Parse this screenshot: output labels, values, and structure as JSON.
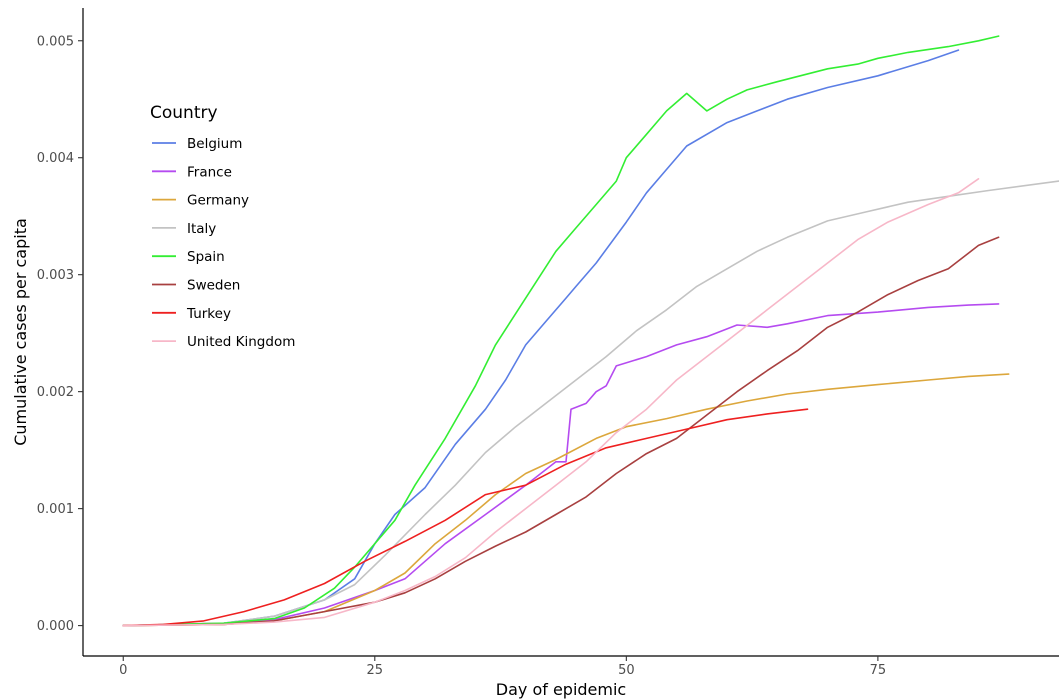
{
  "chart_data": {
    "type": "line",
    "xlabel": "Day of epidemic",
    "ylabel": "Cumulative cases per capita",
    "xlim": [
      -4,
      93
    ],
    "ylim": [
      -0.00026,
      0.00528
    ],
    "x_ticks": [
      0,
      25,
      50,
      75
    ],
    "x_tick_labels": [
      "0",
      "25",
      "50",
      "75"
    ],
    "y_ticks": [
      0,
      0.001,
      0.002,
      0.003,
      0.004,
      0.005
    ],
    "y_tick_labels": [
      "0.000",
      "0.001",
      "0.002",
      "0.003",
      "0.004",
      "0.005"
    ],
    "grid": false,
    "legend": {
      "title": "Country",
      "position": "top-left"
    },
    "series": [
      {
        "name": "Belgium",
        "color": "#5b7ee5",
        "points": [
          [
            0,
            0
          ],
          [
            10,
            2e-05
          ],
          [
            15,
            8e-05
          ],
          [
            20,
            0.00022
          ],
          [
            23,
            0.0004
          ],
          [
            25,
            0.0007
          ],
          [
            27,
            0.00095
          ],
          [
            30,
            0.00118
          ],
          [
            33,
            0.00155
          ],
          [
            36,
            0.00185
          ],
          [
            38,
            0.0021
          ],
          [
            40,
            0.0024
          ],
          [
            42,
            0.0026
          ],
          [
            44,
            0.0028
          ],
          [
            45,
            0.0029
          ],
          [
            47,
            0.0031
          ],
          [
            50,
            0.00345
          ],
          [
            52,
            0.0037
          ],
          [
            54,
            0.0039
          ],
          [
            56,
            0.0041
          ],
          [
            60,
            0.0043
          ],
          [
            63,
            0.0044
          ],
          [
            66,
            0.0045
          ],
          [
            70,
            0.0046
          ],
          [
            75,
            0.0047
          ],
          [
            80,
            0.00483
          ],
          [
            83,
            0.00492
          ]
        ]
      },
      {
        "name": "France",
        "color": "#b54bf0",
        "points": [
          [
            0,
            0
          ],
          [
            10,
            2e-05
          ],
          [
            15,
            5e-05
          ],
          [
            20,
            0.00015
          ],
          [
            25,
            0.0003
          ],
          [
            28,
            0.0004
          ],
          [
            32,
            0.0007
          ],
          [
            36,
            0.00095
          ],
          [
            40,
            0.0012
          ],
          [
            43,
            0.0014
          ],
          [
            44,
            0.0014
          ],
          [
            44.5,
            0.00185
          ],
          [
            46,
            0.0019
          ],
          [
            47,
            0.002
          ],
          [
            48,
            0.00205
          ],
          [
            49,
            0.00222
          ],
          [
            52,
            0.0023
          ],
          [
            55,
            0.0024
          ],
          [
            58,
            0.00247
          ],
          [
            61,
            0.00257
          ],
          [
            64,
            0.00255
          ],
          [
            66,
            0.00258
          ],
          [
            70,
            0.00265
          ],
          [
            75,
            0.00268
          ],
          [
            80,
            0.00272
          ],
          [
            84,
            0.00274
          ],
          [
            87,
            0.00275
          ]
        ]
      },
      {
        "name": "Germany",
        "color": "#dca73c",
        "points": [
          [
            0,
            0
          ],
          [
            10,
            1e-05
          ],
          [
            15,
            4e-05
          ],
          [
            20,
            0.00012
          ],
          [
            25,
            0.0003
          ],
          [
            28,
            0.00045
          ],
          [
            31,
            0.0007
          ],
          [
            34,
            0.0009
          ],
          [
            37,
            0.00112
          ],
          [
            40,
            0.0013
          ],
          [
            43,
            0.00142
          ],
          [
            47,
            0.0016
          ],
          [
            50,
            0.0017
          ],
          [
            54,
            0.00177
          ],
          [
            58,
            0.00185
          ],
          [
            62,
            0.00192
          ],
          [
            66,
            0.00198
          ],
          [
            70,
            0.00202
          ],
          [
            75,
            0.00206
          ],
          [
            80,
            0.0021
          ],
          [
            84,
            0.00213
          ],
          [
            88,
            0.00215
          ]
        ]
      },
      {
        "name": "Italy",
        "color": "#c3c3c3",
        "points": [
          [
            0,
            0
          ],
          [
            10,
            2e-05
          ],
          [
            15,
            8e-05
          ],
          [
            20,
            0.00022
          ],
          [
            23,
            0.00035
          ],
          [
            26,
            0.0006
          ],
          [
            30,
            0.00095
          ],
          [
            33,
            0.0012
          ],
          [
            36,
            0.00148
          ],
          [
            39,
            0.0017
          ],
          [
            42,
            0.0019
          ],
          [
            45,
            0.0021
          ],
          [
            48,
            0.0023
          ],
          [
            51,
            0.00252
          ],
          [
            54,
            0.0027
          ],
          [
            57,
            0.0029
          ],
          [
            60,
            0.00305
          ],
          [
            63,
            0.0032
          ],
          [
            66,
            0.00332
          ],
          [
            70,
            0.00346
          ],
          [
            74,
            0.00354
          ],
          [
            78,
            0.00362
          ],
          [
            82,
            0.00367
          ],
          [
            86,
            0.00372
          ],
          [
            93,
            0.0038
          ]
        ]
      },
      {
        "name": "Spain",
        "color": "#33ee33",
        "points": [
          [
            0,
            0
          ],
          [
            10,
            2e-05
          ],
          [
            15,
            6e-05
          ],
          [
            18,
            0.00015
          ],
          [
            21,
            0.00032
          ],
          [
            23,
            0.0005
          ],
          [
            25,
            0.0007
          ],
          [
            27,
            0.0009
          ],
          [
            29,
            0.0012
          ],
          [
            32,
            0.0016
          ],
          [
            35,
            0.00205
          ],
          [
            37,
            0.0024
          ],
          [
            40,
            0.0028
          ],
          [
            43,
            0.0032
          ],
          [
            45,
            0.0034
          ],
          [
            47,
            0.0036
          ],
          [
            49,
            0.0038
          ],
          [
            50,
            0.004
          ],
          [
            52,
            0.0042
          ],
          [
            54,
            0.0044
          ],
          [
            56,
            0.00455
          ],
          [
            58,
            0.0044
          ],
          [
            60,
            0.0045
          ],
          [
            62,
            0.00458
          ],
          [
            65,
            0.00465
          ],
          [
            70,
            0.00476
          ],
          [
            73,
            0.0048
          ],
          [
            75,
            0.00485
          ],
          [
            78,
            0.0049
          ],
          [
            82,
            0.00495
          ],
          [
            85,
            0.005
          ],
          [
            87,
            0.00504
          ]
        ]
      },
      {
        "name": "Sweden",
        "color": "#a84040",
        "points": [
          [
            0,
            0
          ],
          [
            10,
            1e-05
          ],
          [
            15,
            4e-05
          ],
          [
            20,
            0.00012
          ],
          [
            25,
            0.0002
          ],
          [
            28,
            0.00028
          ],
          [
            31,
            0.0004
          ],
          [
            34,
            0.00055
          ],
          [
            37,
            0.00068
          ],
          [
            40,
            0.0008
          ],
          [
            43,
            0.00095
          ],
          [
            46,
            0.0011
          ],
          [
            49,
            0.0013
          ],
          [
            52,
            0.00147
          ],
          [
            55,
            0.0016
          ],
          [
            58,
            0.0018
          ],
          [
            61,
            0.002
          ],
          [
            64,
            0.00218
          ],
          [
            67,
            0.00235
          ],
          [
            70,
            0.00255
          ],
          [
            73,
            0.00268
          ],
          [
            76,
            0.00283
          ],
          [
            79,
            0.00295
          ],
          [
            82,
            0.00305
          ],
          [
            85,
            0.00325
          ],
          [
            87,
            0.00332
          ]
        ]
      },
      {
        "name": "Turkey",
        "color": "#ee2020",
        "points": [
          [
            0,
            0
          ],
          [
            4,
            1e-05
          ],
          [
            8,
            4e-05
          ],
          [
            12,
            0.00012
          ],
          [
            16,
            0.00022
          ],
          [
            20,
            0.00036
          ],
          [
            24,
            0.00055
          ],
          [
            28,
            0.00072
          ],
          [
            32,
            0.0009
          ],
          [
            36,
            0.00112
          ],
          [
            40,
            0.0012
          ],
          [
            44,
            0.00138
          ],
          [
            48,
            0.00152
          ],
          [
            52,
            0.0016
          ],
          [
            56,
            0.00168
          ],
          [
            60,
            0.00176
          ],
          [
            64,
            0.00181
          ],
          [
            68,
            0.00185
          ]
        ]
      },
      {
        "name": "United Kingdom",
        "color": "#f7b7c8",
        "points": [
          [
            0,
            0
          ],
          [
            10,
            1e-05
          ],
          [
            15,
            3e-05
          ],
          [
            20,
            7e-05
          ],
          [
            25,
            0.0002
          ],
          [
            28,
            0.0003
          ],
          [
            31,
            0.00042
          ],
          [
            34,
            0.00058
          ],
          [
            37,
            0.0008
          ],
          [
            40,
            0.001
          ],
          [
            43,
            0.0012
          ],
          [
            46,
            0.0014
          ],
          [
            49,
            0.00165
          ],
          [
            52,
            0.00185
          ],
          [
            55,
            0.0021
          ],
          [
            58,
            0.0023
          ],
          [
            61,
            0.0025
          ],
          [
            64,
            0.0027
          ],
          [
            67,
            0.0029
          ],
          [
            70,
            0.0031
          ],
          [
            73,
            0.0033
          ],
          [
            76,
            0.00345
          ],
          [
            80,
            0.0036
          ],
          [
            83,
            0.0037
          ],
          [
            85,
            0.00382
          ]
        ]
      }
    ]
  }
}
